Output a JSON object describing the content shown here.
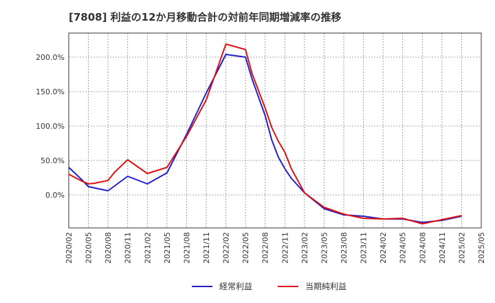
{
  "chart_data": {
    "type": "line",
    "title": "[7808]  利益の12か月移動合計の対前年同期増減率の推移",
    "xlabel": "",
    "ylabel": "",
    "ylim": [
      -48,
      235
    ],
    "yticks": [
      {
        "value": 0,
        "label": "0.0%"
      },
      {
        "value": 50,
        "label": "50.0%"
      },
      {
        "value": 100,
        "label": "100.0%"
      },
      {
        "value": 150,
        "label": "150.0%"
      },
      {
        "value": 200,
        "label": "200.0%"
      }
    ],
    "categories": [
      "2020/02",
      "2020/05",
      "2020/08",
      "2020/11",
      "2021/02",
      "2021/05",
      "2021/08",
      "2021/11",
      "2022/02",
      "2022/05",
      "2022/08",
      "2022/11",
      "2023/02",
      "2023/05",
      "2023/08",
      "2023/11",
      "2024/02",
      "2024/05",
      "2024/08",
      "2024/11",
      "2025/02",
      "2025/05"
    ],
    "x": [
      "2020/02",
      "2020/04",
      "2020/05",
      "2020/06",
      "2020/08",
      "2020/09",
      "2020/11",
      "2021/02",
      "2021/05",
      "2021/08",
      "2021/11",
      "2022/02",
      "2022/05",
      "2022/06",
      "2022/08",
      "2022/09",
      "2022/10",
      "2022/11",
      "2022/12",
      "2023/02",
      "2023/05",
      "2023/08",
      "2023/11",
      "2024/02",
      "2024/05",
      "2024/08",
      "2024/11",
      "2025/02"
    ],
    "series": [
      {
        "name": "経常利益",
        "color": "#1f1fcc",
        "values": [
          40,
          22,
          12,
          10,
          6,
          13,
          27,
          16,
          32,
          88,
          148,
          204,
          200,
          168,
          115,
          80,
          55,
          38,
          24,
          3,
          -20,
          -29,
          -31,
          -35,
          -35,
          -40,
          -37,
          -31
        ]
      },
      {
        "name": "当期純利益",
        "color": "#dd1111",
        "values": [
          30,
          20,
          16,
          17,
          21,
          33,
          51,
          31,
          40,
          85,
          138,
          219,
          211,
          176,
          126,
          98,
          78,
          62,
          38,
          3,
          -18,
          -28,
          -34,
          -35,
          -34,
          -42,
          -36,
          -30
        ]
      }
    ],
    "legend_position": "bottom-center",
    "grid": true
  },
  "legend": {
    "items": [
      {
        "label": "経常利益",
        "color": "#1f1fcc"
      },
      {
        "label": "当期純利益",
        "color": "#dd1111"
      }
    ]
  }
}
